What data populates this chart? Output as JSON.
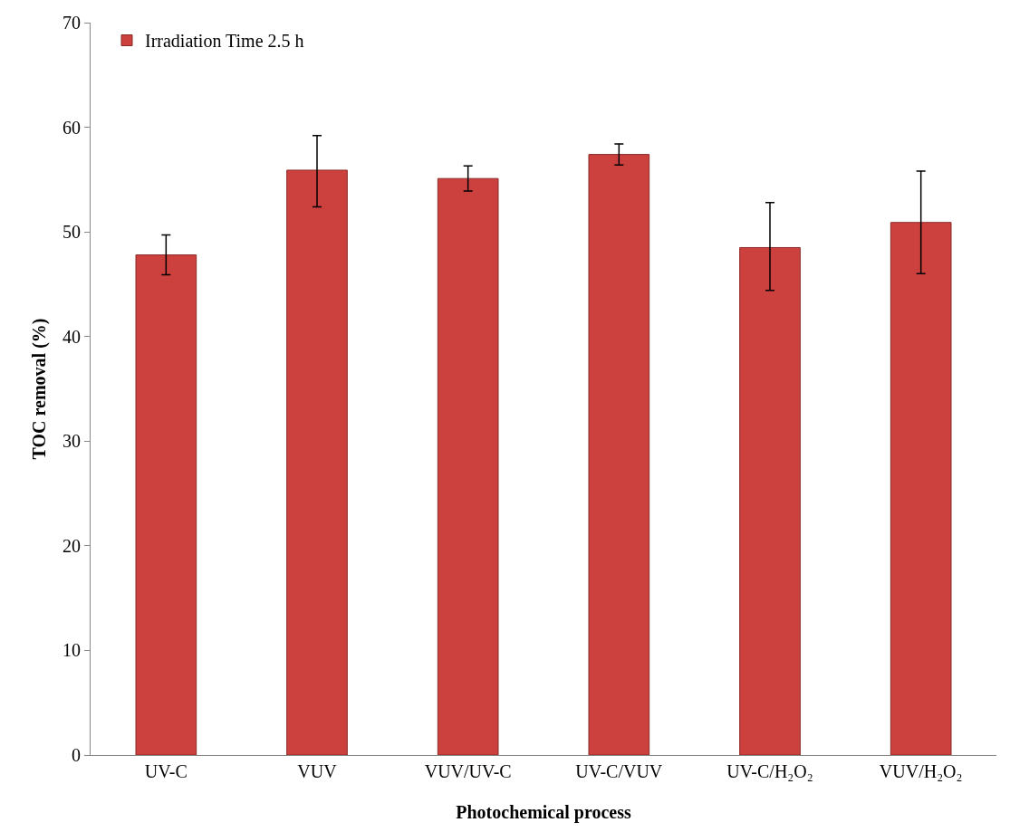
{
  "chart_data": {
    "type": "bar",
    "xlabel": "Photochemical process",
    "ylabel": "TOC removal (%)",
    "categories": [
      "UV-C",
      "VUV",
      "VUV/UV-C",
      "UV-C/VUV",
      "UV-C/H₂O₂",
      "VUV/H₂O₂"
    ],
    "series": [
      {
        "name": "Irradiation Time 2.5 h",
        "color": "#cc403d",
        "values": [
          47.8,
          55.9,
          55.1,
          57.4,
          48.5,
          50.9
        ],
        "errors": [
          [
            45.9,
            49.7
          ],
          [
            52.4,
            59.2
          ],
          [
            53.9,
            56.3
          ],
          [
            56.4,
            58.4
          ],
          [
            44.4,
            52.8
          ],
          [
            46.0,
            55.8
          ]
        ]
      }
    ],
    "ylim": [
      0,
      70
    ],
    "yticks": [
      0,
      10,
      20,
      30,
      40,
      50,
      60,
      70
    ],
    "grid": false,
    "legend": "top left"
  }
}
